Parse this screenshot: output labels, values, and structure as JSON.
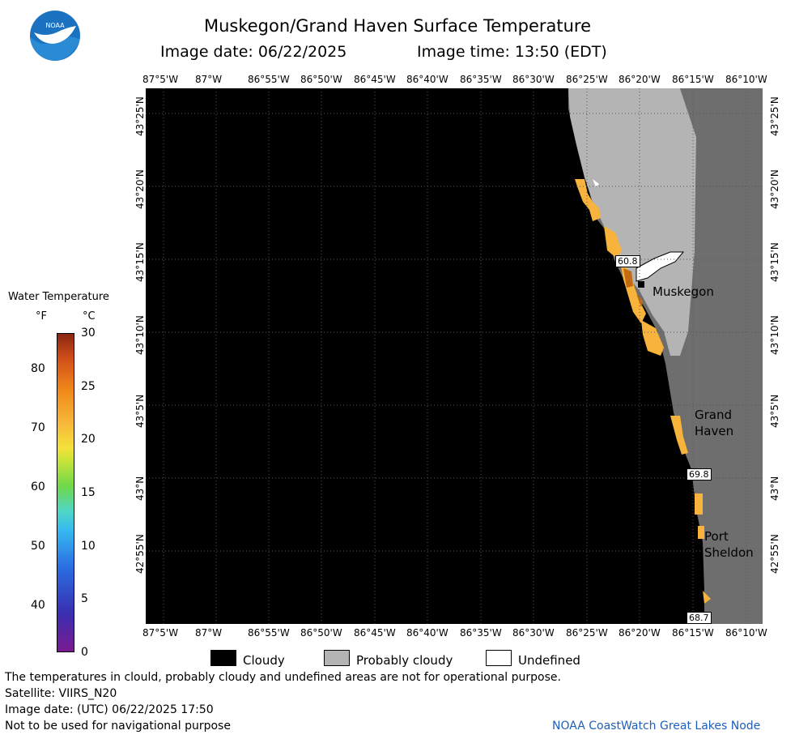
{
  "header": {
    "title": "Muskegon/Grand Haven Surface Temperature",
    "image_date": "Image date: 06/22/2025",
    "image_time": "Image time: 13:50 (EDT)"
  },
  "map": {
    "lon_labels": [
      "87°5'W",
      "87°W",
      "86°55'W",
      "86°50'W",
      "86°45'W",
      "86°40'W",
      "86°35'W",
      "86°30'W",
      "86°25'W",
      "86°20'W",
      "86°15'W",
      "86°10'W"
    ],
    "lat_labels": [
      "43°25'N",
      "43°20'N",
      "43°15'N",
      "43°10'N",
      "43°5'N",
      "43°N",
      "42°55'N"
    ],
    "places": {
      "muskegon": "Muskegon",
      "grand_haven_1": "Grand",
      "grand_haven_2": "Haven",
      "port_sheldon_1": "Port",
      "port_sheldon_2": "Sheldon"
    },
    "values": {
      "muskegon": "60.8",
      "grand_haven": "69.8",
      "port_sheldon": "68.7"
    },
    "colors": {
      "cloudy": "#000000",
      "probably_cloudy": "#6e6e6e",
      "undefined": "#ffffff",
      "warm_water": "#f7b33c"
    }
  },
  "colorbar": {
    "title": "Water Temperature",
    "unit_f": "°F",
    "unit_c": "°C",
    "f_ticks": [
      "80",
      "70",
      "60",
      "50",
      "40"
    ],
    "c_ticks": [
      "30",
      "25",
      "20",
      "15",
      "10",
      "5",
      "0"
    ]
  },
  "legend": {
    "cloudy": "Cloudy",
    "probably_cloudy": "Probably cloudy",
    "undefined": "Undefined"
  },
  "footer": {
    "disclaimer": "The temperatures in clould, probably cloudy and undefined areas are not for operational purpose.",
    "satellite": "Satellite: VIIRS_N20",
    "utc_date": "Image date: (UTC) 06/22/2025  17:50",
    "navigational": "Not to be used for navigational purpose",
    "credit": "NOAA CoastWatch Great Lakes Node"
  },
  "logo": {
    "text": "NOAA"
  }
}
